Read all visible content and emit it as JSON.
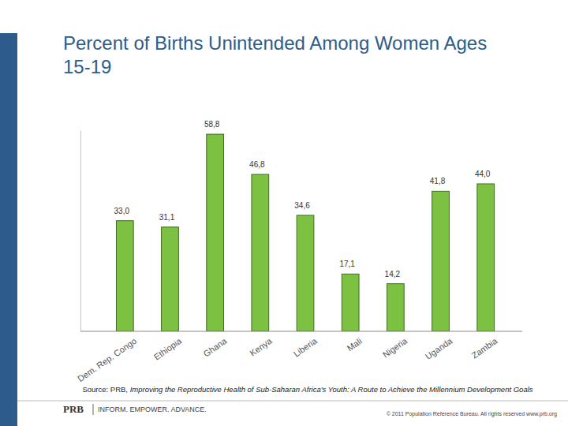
{
  "chart_data": {
    "type": "bar",
    "title": "Percent of Births Unintended Among Women Ages 15-19",
    "categories": [
      "Dem. Rep. Congo",
      "Ethiopia",
      "Ghana",
      "Kenya",
      "Liberia",
      "Mali",
      "Nigeria",
      "Uganda",
      "Zambia"
    ],
    "values": [
      33.0,
      31.1,
      58.8,
      46.8,
      34.6,
      17.1,
      14.2,
      41.8,
      44.0
    ],
    "value_labels": [
      "33,0",
      "31,1",
      "58,8",
      "46,8",
      "34,6",
      "17,1",
      "14,2",
      "41,8",
      "44,0"
    ],
    "color": "#7dc142",
    "ylim": [
      0,
      60
    ],
    "yticks": [],
    "grid": false,
    "data_labels": true,
    "tick_labels": "x",
    "source": [
      "Source: PRB, ",
      "Improving the Reproductive Health of Sub-Saharan Africa's Youth: A Route to Achieve the Millennium Development Goals"
    ],
    "footer": [
      "PRB",
      "INFORM. EMPOWER. ADVANCE.",
      "© 2011 Population Reference Bureau. All rights reserved www.prb.org"
    ]
  }
}
